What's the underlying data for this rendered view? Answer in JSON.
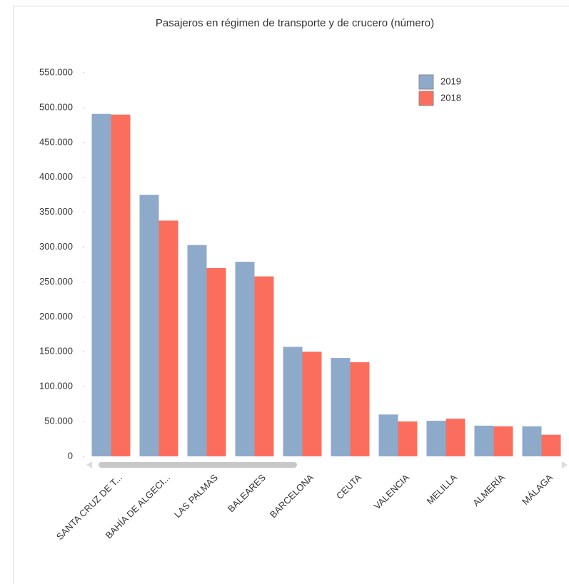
{
  "chart_data": {
    "type": "bar",
    "title": "Pasajeros en régimen de transporte y de crucero (número)",
    "categories": [
      "SANTA CRUZ DE T...",
      "BAHÍA DE ALGECI...",
      "LAS PALMAS",
      "BALEARES",
      "BARCELONA",
      "CEUTA",
      "VALENCIA",
      "MELILLA",
      "ALMERÍA",
      "MÁLAGA"
    ],
    "series": [
      {
        "name": "2019",
        "color": "#8eaacb",
        "values": [
          491000,
          375000,
          303000,
          279000,
          157000,
          141000,
          60000,
          51000,
          44000,
          43000
        ]
      },
      {
        "name": "2018",
        "color": "#fb6e5d",
        "values": [
          490000,
          338000,
          270000,
          258000,
          150000,
          135000,
          50000,
          54000,
          43000,
          31000
        ]
      }
    ],
    "ylim": [
      0,
      550000
    ],
    "yticks": [
      0,
      {
        "value": 50000,
        "label": "50.000"
      },
      {
        "value": 100000,
        "label": "100.000"
      },
      {
        "value": 150000,
        "label": "150.000"
      },
      {
        "value": 200000,
        "label": "200.000"
      },
      {
        "value": 250000,
        "label": "250.000"
      },
      {
        "value": 300000,
        "label": "300.000"
      },
      {
        "value": 350000,
        "label": "350.000"
      },
      {
        "value": 400000,
        "label": "400.000"
      },
      {
        "value": 450000,
        "label": "450.000"
      },
      {
        "value": 500000,
        "label": "500.000"
      },
      {
        "value": 550000,
        "label": "550.000"
      }
    ],
    "grid": false,
    "legend": "top-right"
  }
}
